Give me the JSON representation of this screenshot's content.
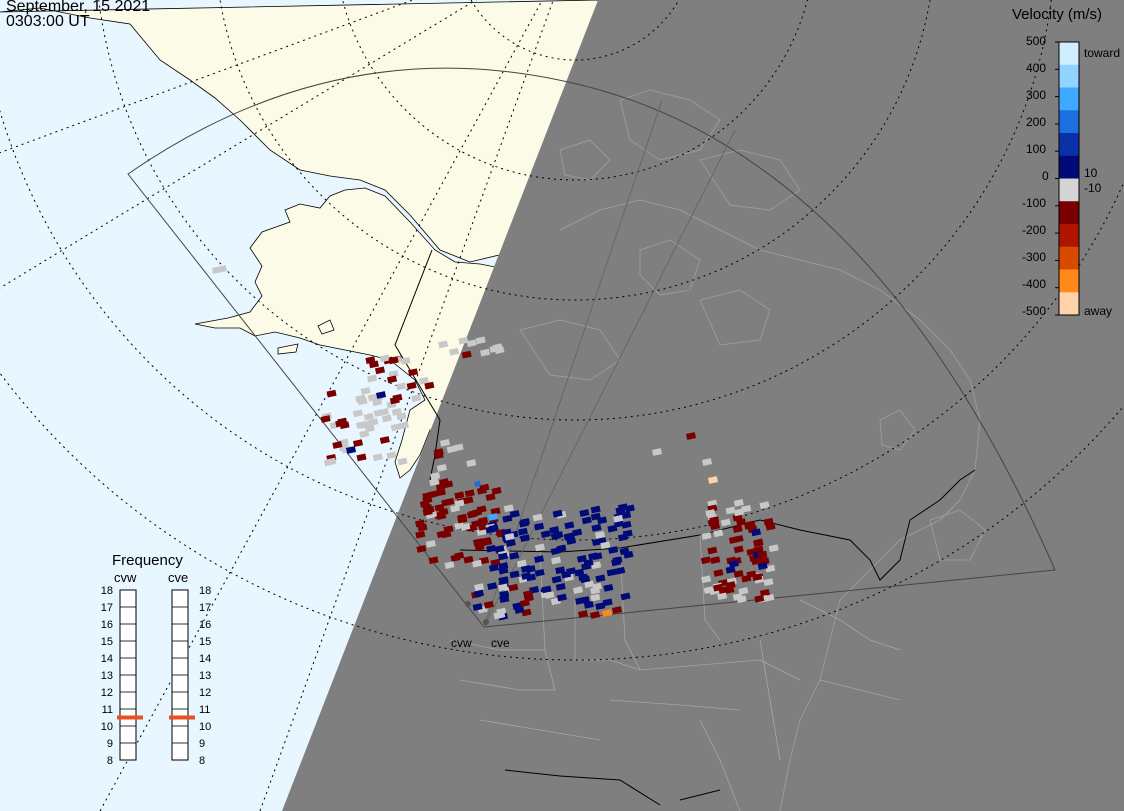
{
  "header": {
    "date": "September, 15 2021",
    "time": "0303:00 UT"
  },
  "velocity_scale": {
    "title": "Velocity (m/s)",
    "ticks": [
      "500",
      "400",
      "300",
      "200",
      "100",
      "0",
      "-100",
      "-200",
      "-300",
      "-400",
      "-500"
    ],
    "label_toward": "toward",
    "label_away": "away",
    "label_pos_threshold": "10",
    "label_neg_threshold": "-10",
    "colors": [
      "#cfefff",
      "#8fd4ff",
      "#3fa8ff",
      "#1c6fe0",
      "#0a32a8",
      "#000a78",
      "#d4d4d4",
      "#7a0000",
      "#b01500",
      "#d84a00",
      "#ff8a1a",
      "#ffd2a8"
    ]
  },
  "frequency": {
    "title": "Frequency",
    "radar_left": "cvw",
    "radar_right": "cve",
    "ticks": [
      "18",
      "17",
      "16",
      "15",
      "14",
      "13",
      "12",
      "11",
      "10",
      "9",
      "8"
    ],
    "value_cvw_mhz": 10.5,
    "value_cve_mhz": 10.5,
    "marker_color": "#e8501e"
  },
  "map": {
    "radar_labels": [
      "cvw",
      "cve"
    ],
    "ocean_color": "#e8f6ff",
    "land_color": "#fcfbe8",
    "night_color": "#7f7f7f",
    "ground_scatter_color": "#c8c8c8"
  }
}
